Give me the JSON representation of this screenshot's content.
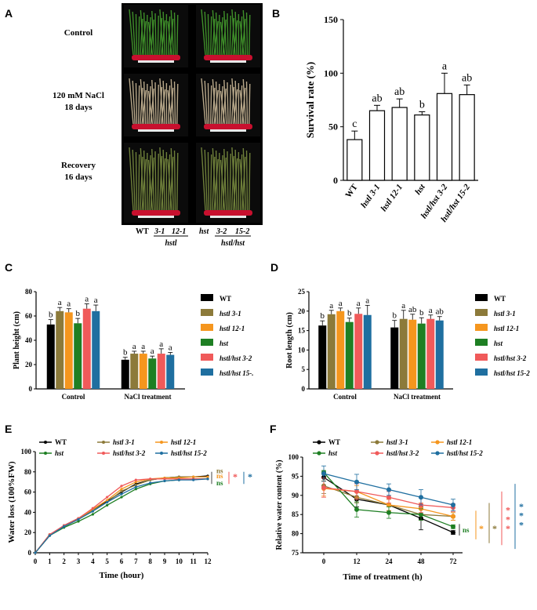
{
  "colors": {
    "WT": "#000000",
    "hstl 3-1": "#8c7a3a",
    "hstl 12-1": "#f5961e",
    "hst": "#1e7f23",
    "hstl/hst 3-2": "#f05a5a",
    "hstl/hst 15-2": "#1f6fa0"
  },
  "panelA": {
    "letter": "A",
    "rows": [
      "Control",
      "120 mM NaCl",
      "18 days",
      "Recovery",
      "16 days"
    ],
    "x_labels": {
      "wt": "WT",
      "a": "3-1",
      "b": "12-1",
      "c": "hst",
      "d": "3-2",
      "e": "15-2"
    },
    "group1": "hstl",
    "group2": "hstl/hst"
  },
  "chart_data": [
    {
      "panel": "B",
      "type": "bar",
      "ylabel": "Survival rate (%)",
      "ylim": [
        0,
        150
      ],
      "yticks": [
        "0",
        "50",
        "100",
        "150"
      ],
      "categories": [
        "WT",
        "hstl 3-1",
        "hstl 12-1",
        "hst",
        "hstl/hst 3-2",
        "hstl/hst 15-2"
      ],
      "values": [
        38,
        65,
        68,
        61,
        81,
        80
      ],
      "errors": [
        8,
        5,
        8,
        3,
        19,
        9
      ],
      "letters": [
        "c",
        "ab",
        "ab",
        "b",
        "a",
        "ab"
      ]
    },
    {
      "panel": "C",
      "type": "bar",
      "ylabel": "Plant height (cm)",
      "ylim": [
        0,
        80
      ],
      "yticks": [
        "0",
        "20",
        "40",
        "60",
        "80"
      ],
      "categories": [
        "Control",
        "NaCl treatment"
      ],
      "series": [
        {
          "name": "WT",
          "values": [
            53,
            24
          ],
          "errors": [
            4,
            2
          ],
          "letters": [
            "b",
            "b"
          ]
        },
        {
          "name": "hstl 3-1",
          "values": [
            64,
            29
          ],
          "errors": [
            3,
            2
          ],
          "letters": [
            "a",
            "a"
          ]
        },
        {
          "name": "hstl 12-1",
          "values": [
            63,
            29
          ],
          "errors": [
            3,
            2
          ],
          "letters": [
            "a",
            "a"
          ]
        },
        {
          "name": "hst",
          "values": [
            54,
            25
          ],
          "errors": [
            4,
            2
          ],
          "letters": [
            "b",
            "a"
          ]
        },
        {
          "name": "hstl/hst 3-2",
          "values": [
            66,
            29
          ],
          "errors": [
            4,
            4
          ],
          "letters": [
            "a",
            "a"
          ]
        },
        {
          "name": "hstl/hst 15-",
          "values": [
            64,
            28
          ],
          "errors": [
            5,
            2
          ],
          "letters": [
            "a",
            "a"
          ]
        }
      ]
    },
    {
      "panel": "D",
      "type": "bar",
      "ylabel": "Root length (cm)",
      "ylim": [
        0,
        25
      ],
      "yticks": [
        "0",
        "5",
        "10",
        "15",
        "20",
        "25"
      ],
      "categories": [
        "Control",
        "NaCl treatment"
      ],
      "series": [
        {
          "name": "WT",
          "values": [
            16.3,
            15.8
          ],
          "errors": [
            1.2,
            1.8
          ],
          "letters": [
            "b",
            "b"
          ]
        },
        {
          "name": "hstl 3-1",
          "values": [
            19.2,
            18.0
          ],
          "errors": [
            1.0,
            2.2
          ],
          "letters": [
            "a",
            "a"
          ]
        },
        {
          "name": "hstl 12-1",
          "values": [
            20.0,
            17.8
          ],
          "errors": [
            0.8,
            1.4
          ],
          "letters": [
            "a",
            "ab"
          ]
        },
        {
          "name": "hst",
          "values": [
            17.2,
            16.8
          ],
          "errors": [
            1.0,
            1.5
          ],
          "letters": [
            "b",
            "b"
          ]
        },
        {
          "name": "hstl/hst 3-2",
          "values": [
            19.3,
            18.0
          ],
          "errors": [
            1.5,
            1.0
          ],
          "letters": [
            "a",
            "a"
          ]
        },
        {
          "name": "hstl/hst 15-2",
          "values": [
            19.0,
            17.6
          ],
          "errors": [
            2.5,
            1.0
          ],
          "letters": [
            "a",
            "ab"
          ]
        }
      ]
    },
    {
      "panel": "E",
      "type": "line",
      "xlabel": "Time (hour)",
      "ylabel": "Water loss (100%FW)",
      "xlim": [
        0,
        12
      ],
      "ylim": [
        0,
        100
      ],
      "x": [
        0,
        1,
        2,
        3,
        4,
        5,
        6,
        7,
        8,
        9,
        10,
        11,
        12
      ],
      "xticks": [
        "0",
        "1",
        "2",
        "3",
        "4",
        "5",
        "6",
        "7",
        "8",
        "9",
        "10",
        "11",
        "12"
      ],
      "yticks": [
        "0",
        "20",
        "40",
        "60",
        "80",
        "100"
      ],
      "series": [
        {
          "name": "WT",
          "values": [
            0,
            17,
            27,
            34,
            43,
            51,
            60,
            68,
            72,
            74,
            75,
            75,
            76
          ]
        },
        {
          "name": "hstl 3-1",
          "values": [
            0,
            18,
            26,
            33,
            42,
            50,
            61,
            67,
            72,
            74,
            75,
            75,
            75
          ]
        },
        {
          "name": "hstl 12-1",
          "values": [
            0,
            18,
            26,
            34,
            43,
            52,
            63,
            70,
            73,
            74,
            74,
            75,
            75
          ]
        },
        {
          "name": "hst",
          "values": [
            0,
            17,
            25,
            31,
            38,
            47,
            55,
            63,
            68,
            71,
            72,
            73,
            73
          ]
        },
        {
          "name": "hstl/hst 3-2",
          "values": [
            0,
            18,
            27,
            34,
            44,
            55,
            66,
            72,
            73,
            73,
            73,
            73,
            73
          ]
        },
        {
          "name": "hstl/hst 15-2",
          "values": [
            0,
            17,
            26,
            33,
            41,
            50,
            58,
            65,
            69,
            71,
            72,
            72,
            73
          ]
        }
      ],
      "significance": [
        {
          "label": "ns",
          "color": "#8c7a3a"
        },
        {
          "label": "ns",
          "color": "#f5961e"
        },
        {
          "label": "ns",
          "color": "#1e7f23"
        },
        {
          "label": "*",
          "color": "#f05a5a"
        },
        {
          "label": "*",
          "color": "#1f6fa0"
        }
      ]
    },
    {
      "panel": "F",
      "type": "line",
      "xlabel": "Time of treatment (h)",
      "ylabel": "Relative water content (%)",
      "x": [
        "0",
        "12",
        "24",
        "48",
        "72"
      ],
      "ylim": [
        75,
        100
      ],
      "yticks": [
        "75",
        "80",
        "85",
        "90",
        "95",
        "100"
      ],
      "series": [
        {
          "name": "WT",
          "values": [
            94.7,
            89.0,
            87.5,
            84.0,
            80.3
          ],
          "errors": [
            1.0,
            2.0,
            1.5,
            3.0,
            0.5
          ]
        },
        {
          "name": "hstl 3-1",
          "values": [
            92.5,
            89.5,
            87.5,
            85.0,
            84.5
          ],
          "errors": [
            2.0,
            1.5,
            1.5,
            1.5,
            1.0
          ]
        },
        {
          "name": "hstl 12-1",
          "values": [
            91.8,
            91.0,
            87.5,
            86.5,
            84.5
          ],
          "errors": [
            2.0,
            1.5,
            1.5,
            1.5,
            1.0
          ]
        },
        {
          "name": "hst",
          "values": [
            96.0,
            86.3,
            85.5,
            85.0,
            81.8
          ],
          "errors": [
            0.5,
            2.0,
            1.5,
            1.5,
            0.5
          ]
        },
        {
          "name": "hstl/hst 3-2",
          "values": [
            92.0,
            91.0,
            89.5,
            87.5,
            86.8
          ],
          "errors": [
            2.5,
            2.0,
            1.5,
            2.0,
            1.0
          ]
        },
        {
          "name": "hstl/hst 15-2",
          "values": [
            95.7,
            93.5,
            91.5,
            89.5,
            87.5
          ],
          "errors": [
            2.0,
            2.0,
            1.5,
            2.0,
            1.5
          ]
        }
      ],
      "significance": [
        {
          "label": "ns",
          "color": "#1e7f23"
        },
        {
          "label": "*",
          "color": "#f5961e"
        },
        {
          "label": "*",
          "color": "#8c7a3a"
        },
        {
          "label": "***",
          "color": "#f05a5a"
        },
        {
          "label": "***",
          "color": "#1f6fa0"
        }
      ]
    }
  ],
  "panelC_legend": [
    "WT",
    "hstl 3-1",
    "hstl 12-1",
    "hst",
    "hstl/hst 3-2",
    "hstl/hst 15-."
  ],
  "panelD_legend": [
    "WT",
    "hstl 3-1",
    "hstl 12-1",
    "hst",
    "hstl/hst 3-2",
    "hstl/hst 15-2"
  ],
  "panelE_legend": [
    "WT",
    "hstl 3-1",
    "hstl 12-1",
    "hst",
    "hstl/hst 3-2",
    "hstl/hst 15-2"
  ],
  "panelF_legend": [
    "WT",
    "hstl 3-1",
    "hstl 12-1",
    "hst",
    "hstl/hst 3-2",
    "hstl/hst 15-2"
  ],
  "letters": {
    "A": "A",
    "B": "B",
    "C": "C",
    "D": "D",
    "E": "E",
    "F": "F"
  }
}
